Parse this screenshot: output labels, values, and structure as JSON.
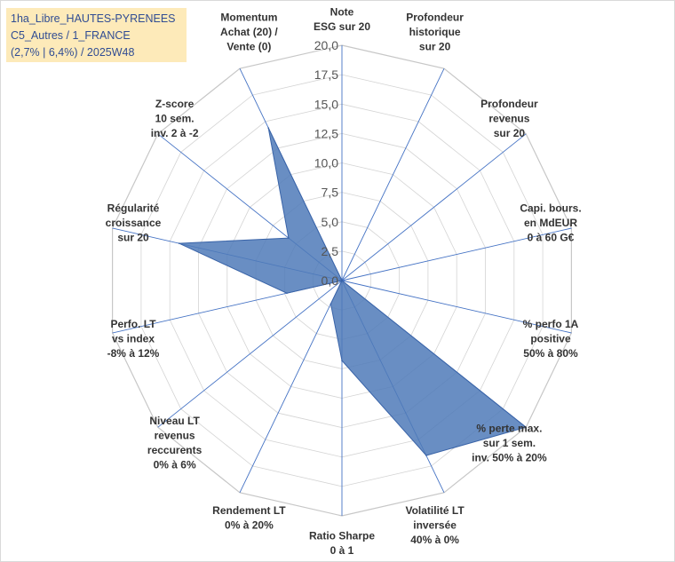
{
  "info_box": {
    "line1": "1ha_Libre_HAUTES-PYRENEES",
    "line2": "C5_Autres / 1_FRANCE",
    "line3": "(2,7% | 6,4%) / 2025W48"
  },
  "chart_data": {
    "type": "radar",
    "r_min": 0,
    "r_max": 20,
    "r_step": 2.5,
    "grid": true,
    "tick_labels": [
      "0,0",
      "2,5",
      "5,0",
      "7,5",
      "10,0",
      "12,5",
      "15,0",
      "17,5",
      "20,0"
    ],
    "axes": [
      {
        "lines": [
          "Note",
          "ESG sur 20"
        ]
      },
      {
        "lines": [
          "Profondeur",
          "historique",
          "sur 20"
        ]
      },
      {
        "lines": [
          "Profondeur",
          "revenus",
          "sur 20"
        ]
      },
      {
        "lines": [
          "Capi. bours.",
          "en MdEUR",
          "0 à 60 G€"
        ]
      },
      {
        "lines": [
          "% perfo 1A",
          "positive",
          "50% à 80%"
        ]
      },
      {
        "lines": [
          "% perte max.",
          "sur 1 sem.",
          "inv. 50% à 20%"
        ]
      },
      {
        "lines": [
          "Volatilité LT",
          "inversée",
          "40% à 0%"
        ]
      },
      {
        "lines": [
          "Ratio Sharpe",
          "0 à 1"
        ]
      },
      {
        "lines": [
          "Rendement LT",
          "0% à 20%"
        ]
      },
      {
        "lines": [
          "Niveau LT",
          "revenus",
          "reccurents",
          "0% à 6%"
        ]
      },
      {
        "lines": [
          "Perfo. LT",
          "vs index",
          "-8% à 12%"
        ]
      },
      {
        "lines": [
          "Régularité",
          "croissance",
          "sur 20"
        ]
      },
      {
        "lines": [
          "Z-score",
          "10 sem.",
          "inv. 2 à -2"
        ]
      },
      {
        "lines": [
          "Momentum",
          "Achat (20) /",
          "Vente (0)"
        ]
      }
    ],
    "series": [
      {
        "values": [
          0,
          0,
          0,
          0,
          0,
          20,
          16.5,
          6.8,
          2.2,
          0,
          4.8,
          14.2,
          5.8,
          14.4
        ],
        "color": "#4f7ab8"
      }
    ]
  }
}
